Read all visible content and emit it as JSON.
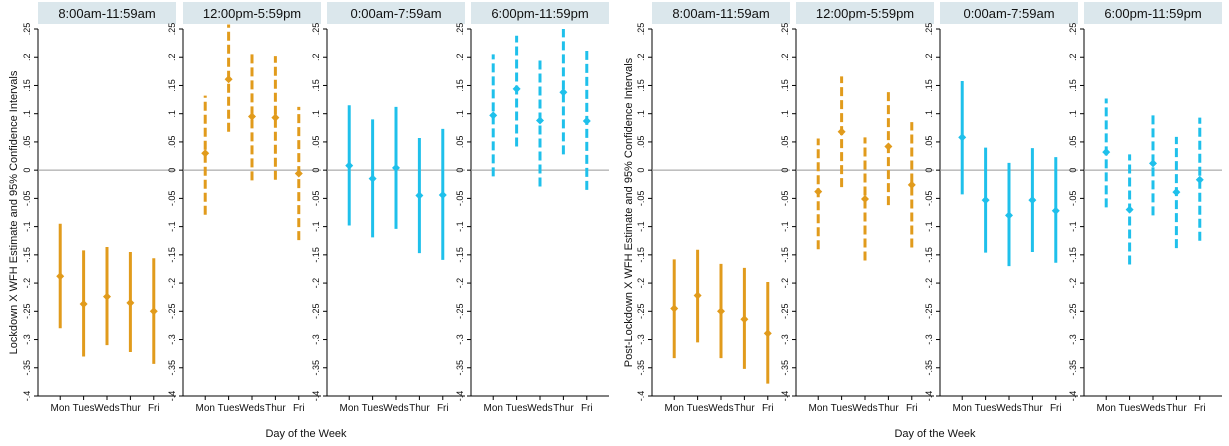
{
  "colors": {
    "orange": "#e19b1c",
    "blue": "#1fc0eb",
    "header_bg": "#dbe7ec",
    "zero_line": "#999999",
    "axis": "#000000"
  },
  "chart_data": [
    {
      "type": "scatter",
      "ylabel": "Lockdown X WFH Estimate and 95% Confidence Intervals",
      "xlabel": "Day of the Week",
      "ylim": [
        -0.4,
        0.25
      ],
      "yticks": [
        ".25",
        ".2",
        ".15",
        ".1",
        ".05",
        "0",
        "-.05",
        "-.1",
        "-.15",
        "-.2",
        "-.25",
        "-.3",
        "-.35",
        "-.4"
      ],
      "categories": [
        "Mon",
        "Tues",
        "Weds",
        "Thur",
        "Fri"
      ],
      "panels": [
        {
          "title": "8:00am-11:59am",
          "color": "orange",
          "dash": false,
          "estimates": [
            -0.188,
            -0.237,
            -0.224,
            -0.235,
            -0.25
          ],
          "ci_low": [
            -0.28,
            -0.33,
            -0.31,
            -0.322,
            -0.343
          ],
          "ci_high": [
            -0.095,
            -0.142,
            -0.136,
            -0.145,
            -0.156
          ]
        },
        {
          "title": "12:00pm-5:59pm",
          "color": "orange",
          "dash": true,
          "estimates": [
            0.03,
            0.161,
            0.095,
            0.093,
            -0.006
          ],
          "ci_low": [
            -0.079,
            0.068,
            -0.018,
            -0.017,
            -0.124
          ],
          "ci_high": [
            0.132,
            0.258,
            0.207,
            0.202,
            0.112
          ]
        },
        {
          "title": "0:00am-7:59am",
          "color": "blue",
          "dash": false,
          "estimates": [
            0.008,
            -0.015,
            0.004,
            -0.045,
            -0.044
          ],
          "ci_low": [
            -0.098,
            -0.119,
            -0.104,
            -0.147,
            -0.159
          ],
          "ci_high": [
            0.115,
            0.09,
            0.112,
            0.057,
            0.073
          ]
        },
        {
          "title": "6:00pm-11:59pm",
          "color": "blue",
          "dash": true,
          "estimates": [
            0.097,
            0.144,
            0.088,
            0.138,
            0.087
          ],
          "ci_low": [
            -0.011,
            0.042,
            -0.029,
            0.028,
            -0.035
          ],
          "ci_high": [
            0.205,
            0.238,
            0.196,
            0.25,
            0.211
          ]
        }
      ]
    },
    {
      "type": "scatter",
      "ylabel": "Post-Lockdown X WFH Estimate and 95% Confidence Intervals",
      "xlabel": "Day of the Week",
      "ylim": [
        -0.4,
        0.25
      ],
      "yticks": [
        ".25",
        ".2",
        ".15",
        ".1",
        ".05",
        "0",
        "-.05",
        "-.1",
        "-.15",
        "-.2",
        "-.25",
        "-.3",
        "-.35",
        "-.4"
      ],
      "categories": [
        "Mon",
        "Tues",
        "Weds",
        "Thur",
        "Fri"
      ],
      "panels": [
        {
          "title": "8:00am-11:59am",
          "color": "orange",
          "dash": false,
          "estimates": [
            -0.245,
            -0.222,
            -0.25,
            -0.264,
            -0.289
          ],
          "ci_low": [
            -0.333,
            -0.305,
            -0.333,
            -0.352,
            -0.378
          ],
          "ci_high": [
            -0.158,
            -0.141,
            -0.166,
            -0.173,
            -0.198
          ]
        },
        {
          "title": "12:00pm-5:59pm",
          "color": "orange",
          "dash": true,
          "estimates": [
            -0.038,
            0.068,
            -0.051,
            0.042,
            -0.026
          ],
          "ci_low": [
            -0.14,
            -0.03,
            -0.16,
            -0.062,
            -0.137
          ],
          "ci_high": [
            0.056,
            0.166,
            0.058,
            0.143,
            0.085
          ]
        },
        {
          "title": "0:00am-7:59am",
          "color": "blue",
          "dash": false,
          "estimates": [
            0.058,
            -0.053,
            -0.08,
            -0.053,
            -0.072
          ],
          "ci_low": [
            -0.043,
            -0.146,
            -0.17,
            -0.145,
            -0.164
          ],
          "ci_high": [
            0.158,
            0.04,
            0.013,
            0.039,
            0.023
          ]
        },
        {
          "title": "6:00pm-11:59pm",
          "color": "blue",
          "dash": true,
          "estimates": [
            0.032,
            -0.07,
            0.012,
            -0.039,
            -0.017
          ],
          "ci_low": [
            -0.066,
            -0.167,
            -0.08,
            -0.138,
            -0.125
          ],
          "ci_high": [
            0.127,
            0.028,
            0.103,
            0.059,
            0.093
          ]
        }
      ]
    }
  ]
}
